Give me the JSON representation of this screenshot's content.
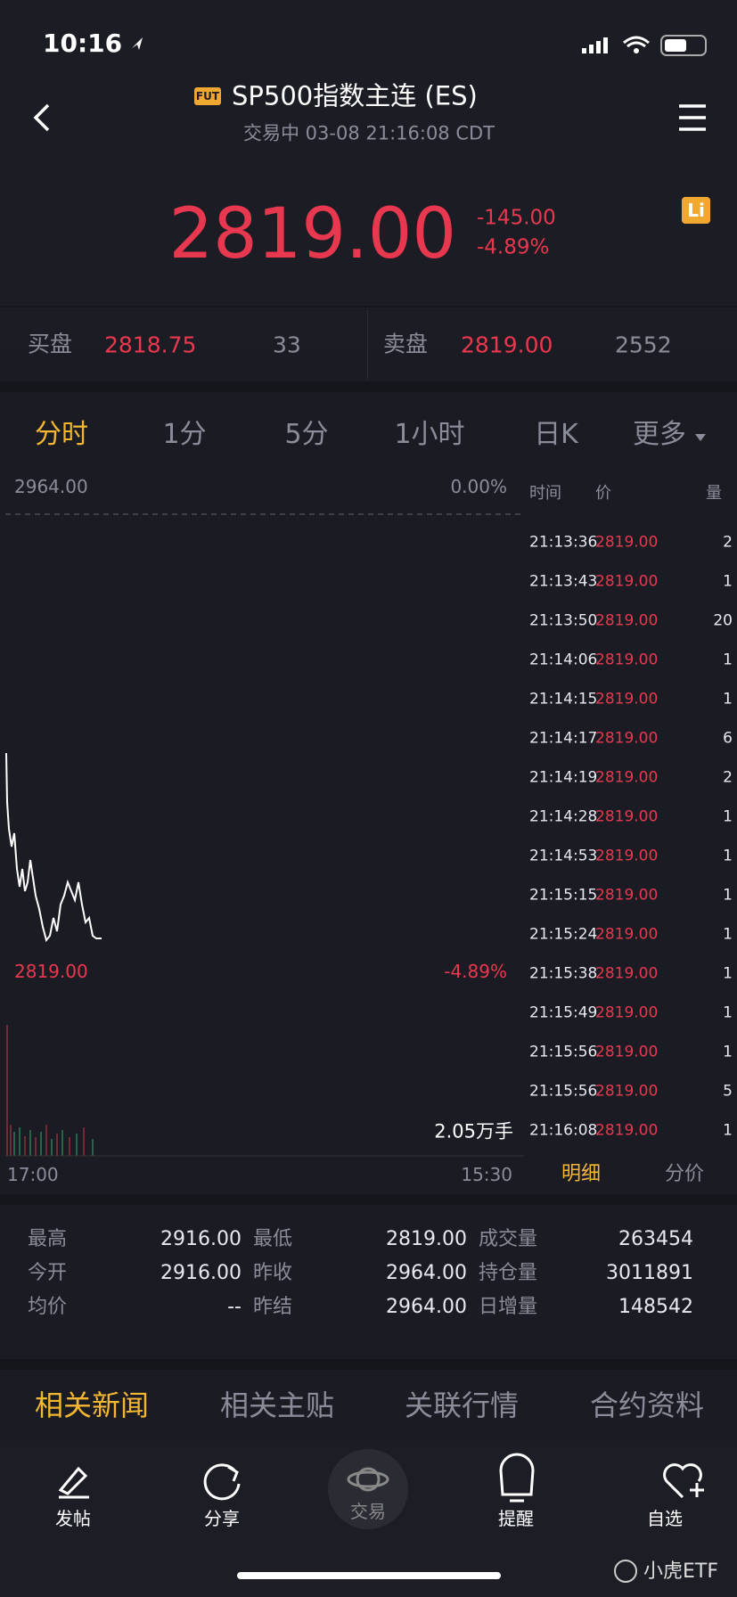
{
  "status_bar": {
    "time": "10:16"
  },
  "header": {
    "badge": "FUT",
    "title": "SP500指数主连 (ES)",
    "subtitle": "交易中 03-08 21:16:08 CDT"
  },
  "quote": {
    "price": "2819.00",
    "change": "-145.00",
    "change_pct": "-4.89%",
    "badge": "Li"
  },
  "order_book": {
    "bid_label": "买盘",
    "bid_price": "2818.75",
    "bid_size": "33",
    "ask_label": "卖盘",
    "ask_price": "2819.00",
    "ask_size": "2552"
  },
  "tabs": [
    "分时",
    "1分",
    "5分",
    "1小时",
    "日K",
    "更多"
  ],
  "chart": {
    "top_price": "2964.00",
    "top_pct": "0.00%",
    "last_price": "2819.00",
    "last_pct": "-4.89%",
    "volume": "2.05万手",
    "start_time": "17:00",
    "end_time": "15:30"
  },
  "trades": {
    "headers": [
      "时间",
      "价",
      "量"
    ],
    "rows": [
      [
        "21:13:36",
        "2819.00",
        "2"
      ],
      [
        "21:13:43",
        "2819.00",
        "1"
      ],
      [
        "21:13:50",
        "2819.00",
        "20"
      ],
      [
        "21:14:06",
        "2819.00",
        "1"
      ],
      [
        "21:14:15",
        "2819.00",
        "1"
      ],
      [
        "21:14:17",
        "2819.00",
        "6"
      ],
      [
        "21:14:19",
        "2819.00",
        "2"
      ],
      [
        "21:14:28",
        "2819.00",
        "1"
      ],
      [
        "21:14:53",
        "2819.00",
        "1"
      ],
      [
        "21:15:15",
        "2819.00",
        "1"
      ],
      [
        "21:15:24",
        "2819.00",
        "1"
      ],
      [
        "21:15:38",
        "2819.00",
        "1"
      ],
      [
        "21:15:49",
        "2819.00",
        "1"
      ],
      [
        "21:15:56",
        "2819.00",
        "1"
      ],
      [
        "21:15:56",
        "2819.00",
        "5"
      ],
      [
        "21:16:08",
        "2819.00",
        "1"
      ]
    ],
    "tabs": [
      "明细",
      "分价"
    ]
  },
  "stats": [
    [
      [
        "最高",
        "2916.00"
      ],
      [
        "最低",
        "2819.00"
      ],
      [
        "成交量",
        "263454"
      ]
    ],
    [
      [
        "今开",
        "2916.00"
      ],
      [
        "昨收",
        "2964.00"
      ],
      [
        "持仓量",
        "3011891"
      ]
    ],
    [
      [
        "均价",
        "--"
      ],
      [
        "昨结",
        "2964.00"
      ],
      [
        "日增量",
        "148542"
      ]
    ]
  ],
  "news_tabs": [
    "相关新闻",
    "相关主贴",
    "关联行情",
    "合约资料"
  ],
  "nav": [
    "发帖",
    "分享",
    "交易",
    "提醒",
    "自选"
  ],
  "watermark": "小虎ETF"
}
